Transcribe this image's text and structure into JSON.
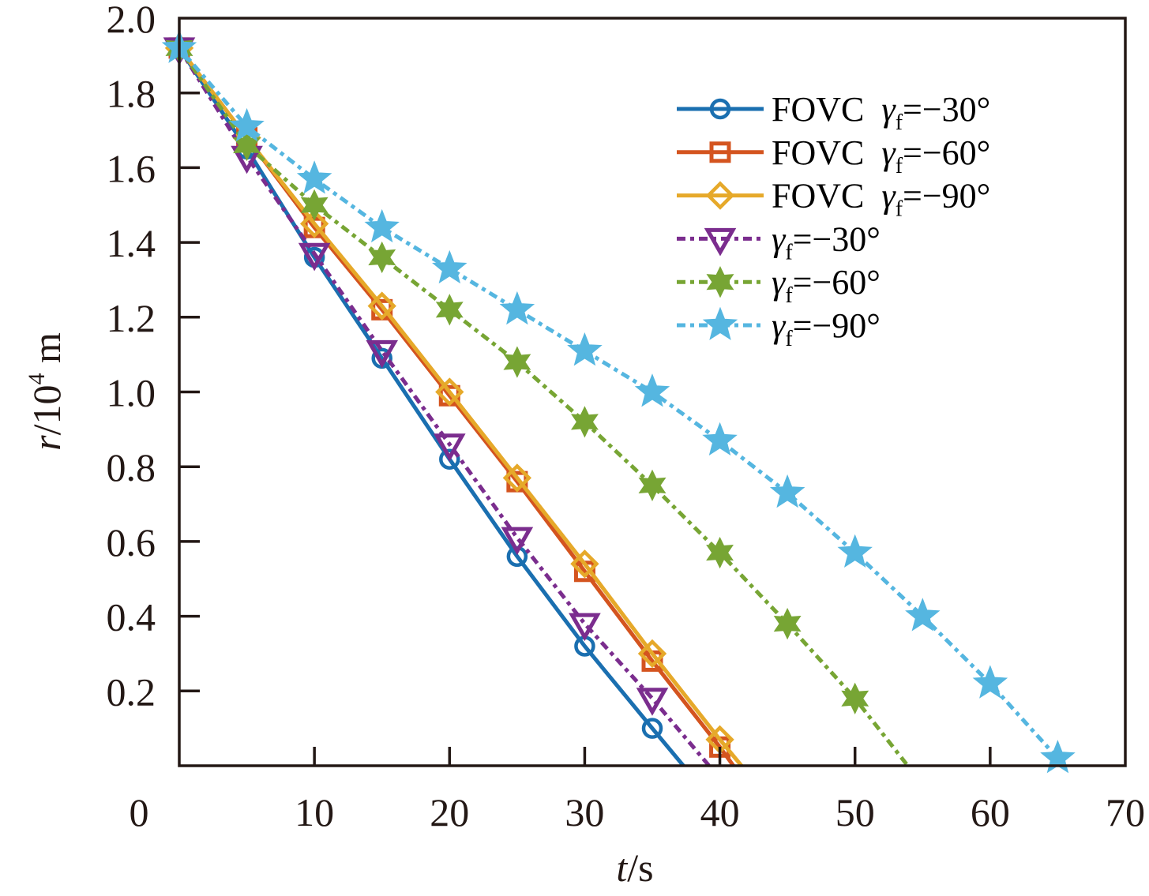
{
  "chart_data": {
    "type": "line",
    "title": "",
    "xlabel": {
      "italic": "t",
      "rest": "/s"
    },
    "ylabel": {
      "italic": "r",
      "rest": "/10",
      "sup": "4",
      "unit": " m"
    },
    "xlim": [
      0,
      70
    ],
    "ylim": [
      0,
      2.0
    ],
    "x_ticks": [
      10,
      20,
      30,
      40,
      50,
      60,
      70
    ],
    "x_tick_labels": [
      "10",
      "20",
      "30",
      "40",
      "50",
      "60",
      "70"
    ],
    "y_ticks": [
      0.2,
      0.4,
      0.6,
      0.8,
      1.0,
      1.2,
      1.4,
      1.6,
      1.8,
      2.0
    ],
    "y_tick_labels": [
      "0.2",
      "0.4",
      "0.6",
      "0.8",
      "1.0",
      "1.2",
      "1.4",
      "1.6",
      "1.8",
      "2.0"
    ],
    "origin_label": "0",
    "grid": false,
    "legend_position": "top-right",
    "series": [
      {
        "name": "FOVC γf=−30°",
        "legend_prefix": "FOVC ",
        "legend_symbol": "γ",
        "legend_sub": "f",
        "legend_value": "=−30°",
        "color": "#1a6fb0",
        "line_style": "solid",
        "marker": "circle",
        "points": [
          [
            0,
            1.92
          ],
          [
            5,
            1.65
          ],
          [
            10,
            1.36
          ],
          [
            15,
            1.09
          ],
          [
            20,
            0.82
          ],
          [
            25,
            0.56
          ],
          [
            30,
            0.32
          ],
          [
            35,
            0.1
          ]
        ],
        "line_end": [
          37.3,
          0
        ]
      },
      {
        "name": "FOVC γf=−60°",
        "legend_prefix": "FOVC ",
        "legend_symbol": "γ",
        "legend_sub": "f",
        "legend_value": "=−60°",
        "color": "#d4541f",
        "line_style": "solid",
        "marker": "square",
        "points": [
          [
            0,
            1.92
          ],
          [
            5,
            1.68
          ],
          [
            10,
            1.44
          ],
          [
            15,
            1.22
          ],
          [
            20,
            0.99
          ],
          [
            25,
            0.76
          ],
          [
            30,
            0.52
          ],
          [
            35,
            0.28
          ],
          [
            40,
            0.05
          ]
        ],
        "line_end": [
          41.0,
          0
        ]
      },
      {
        "name": "FOVC γf=−90°",
        "legend_prefix": "FOVC ",
        "legend_symbol": "γ",
        "legend_sub": "f",
        "legend_value": "=−90°",
        "color": "#e6a92a",
        "line_style": "solid",
        "marker": "diamond",
        "points": [
          [
            0,
            1.92
          ],
          [
            5,
            1.68
          ],
          [
            10,
            1.45
          ],
          [
            15,
            1.23
          ],
          [
            20,
            1.0
          ],
          [
            25,
            0.77
          ],
          [
            30,
            0.54
          ],
          [
            35,
            0.3
          ],
          [
            40,
            0.07
          ]
        ],
        "line_end": [
          41.6,
          0
        ]
      },
      {
        "name": "γf=−30°",
        "legend_prefix": "",
        "legend_symbol": "γ",
        "legend_sub": "f",
        "legend_value": "=−30°",
        "color": "#7b2d8e",
        "line_style": "dash-dot",
        "marker": "triangle-down",
        "points": [
          [
            0,
            1.92
          ],
          [
            5,
            1.63
          ],
          [
            10,
            1.37
          ],
          [
            15,
            1.11
          ],
          [
            20,
            0.86
          ],
          [
            25,
            0.61
          ],
          [
            30,
            0.38
          ],
          [
            35,
            0.18
          ]
        ],
        "line_end": [
          39.2,
          0
        ]
      },
      {
        "name": "γf=−60°",
        "legend_prefix": "",
        "legend_symbol": "γ",
        "legend_sub": "f",
        "legend_value": "=−60°",
        "color": "#77a534",
        "line_style": "dash-dot",
        "marker": "hexagram",
        "points": [
          [
            0,
            1.92
          ],
          [
            5,
            1.66
          ],
          [
            10,
            1.5
          ],
          [
            15,
            1.36
          ],
          [
            20,
            1.22
          ],
          [
            25,
            1.08
          ],
          [
            30,
            0.92
          ],
          [
            35,
            0.75
          ],
          [
            40,
            0.57
          ],
          [
            45,
            0.38
          ],
          [
            50,
            0.18
          ]
        ],
        "line_end": [
          53.9,
          0
        ]
      },
      {
        "name": "γf=−90°",
        "legend_prefix": "",
        "legend_symbol": "γ",
        "legend_sub": "f",
        "legend_value": "=−90°",
        "color": "#55b6e0",
        "line_style": "dash-dot",
        "marker": "pentagram",
        "points": [
          [
            0,
            1.92
          ],
          [
            5,
            1.71
          ],
          [
            10,
            1.57
          ],
          [
            15,
            1.44
          ],
          [
            20,
            1.33
          ],
          [
            25,
            1.22
          ],
          [
            30,
            1.11
          ],
          [
            35,
            1.0
          ],
          [
            40,
            0.87
          ],
          [
            45,
            0.73
          ],
          [
            50,
            0.57
          ],
          [
            55,
            0.4
          ],
          [
            60,
            0.22
          ],
          [
            65,
            0.02
          ]
        ],
        "line_end": null
      }
    ]
  }
}
